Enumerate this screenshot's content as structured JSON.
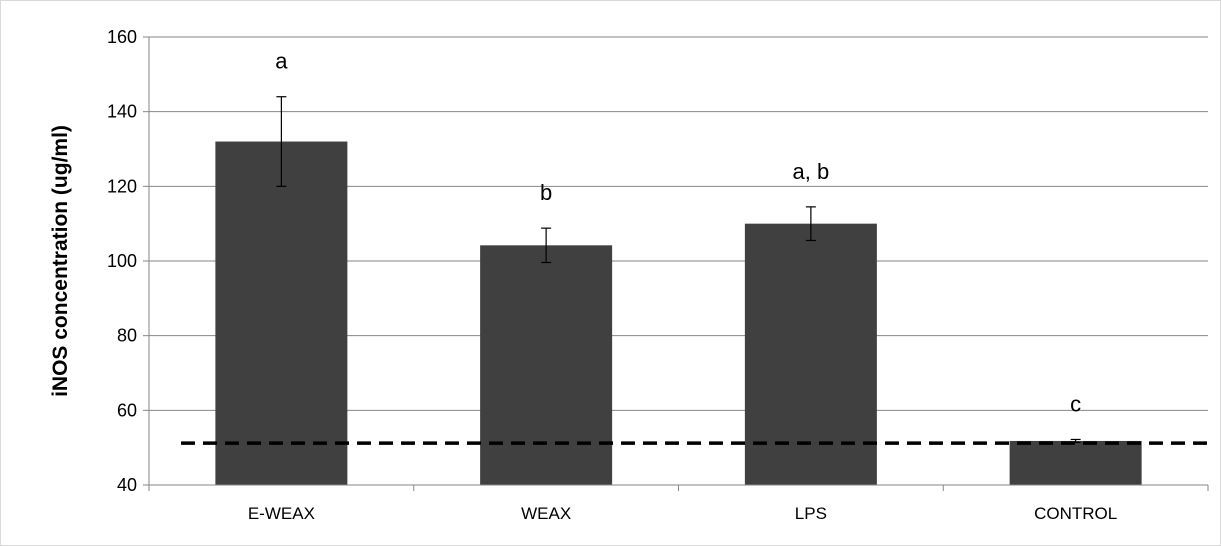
{
  "chart_data": {
    "type": "bar",
    "title": "",
    "xlabel": "",
    "ylabel": "iNOS concentration (ug/ml)",
    "categories": [
      "E-WEAX",
      "WEAX",
      "LPS",
      "CONTROL"
    ],
    "values": [
      132,
      104.2,
      110,
      51.8
    ],
    "error": [
      12,
      4.6,
      4.5,
      0.4
    ],
    "significance_labels": [
      "a",
      "b",
      "a, b",
      "c"
    ],
    "ylim": [
      40,
      160
    ],
    "yticks": [
      40,
      60,
      80,
      100,
      120,
      140,
      160
    ],
    "reference_line": {
      "y": 51.2,
      "style": "dashed"
    },
    "grid": true,
    "legend": "none",
    "colors": {
      "bar": "#404040",
      "grid": "#868686",
      "reference": "#000000"
    }
  }
}
